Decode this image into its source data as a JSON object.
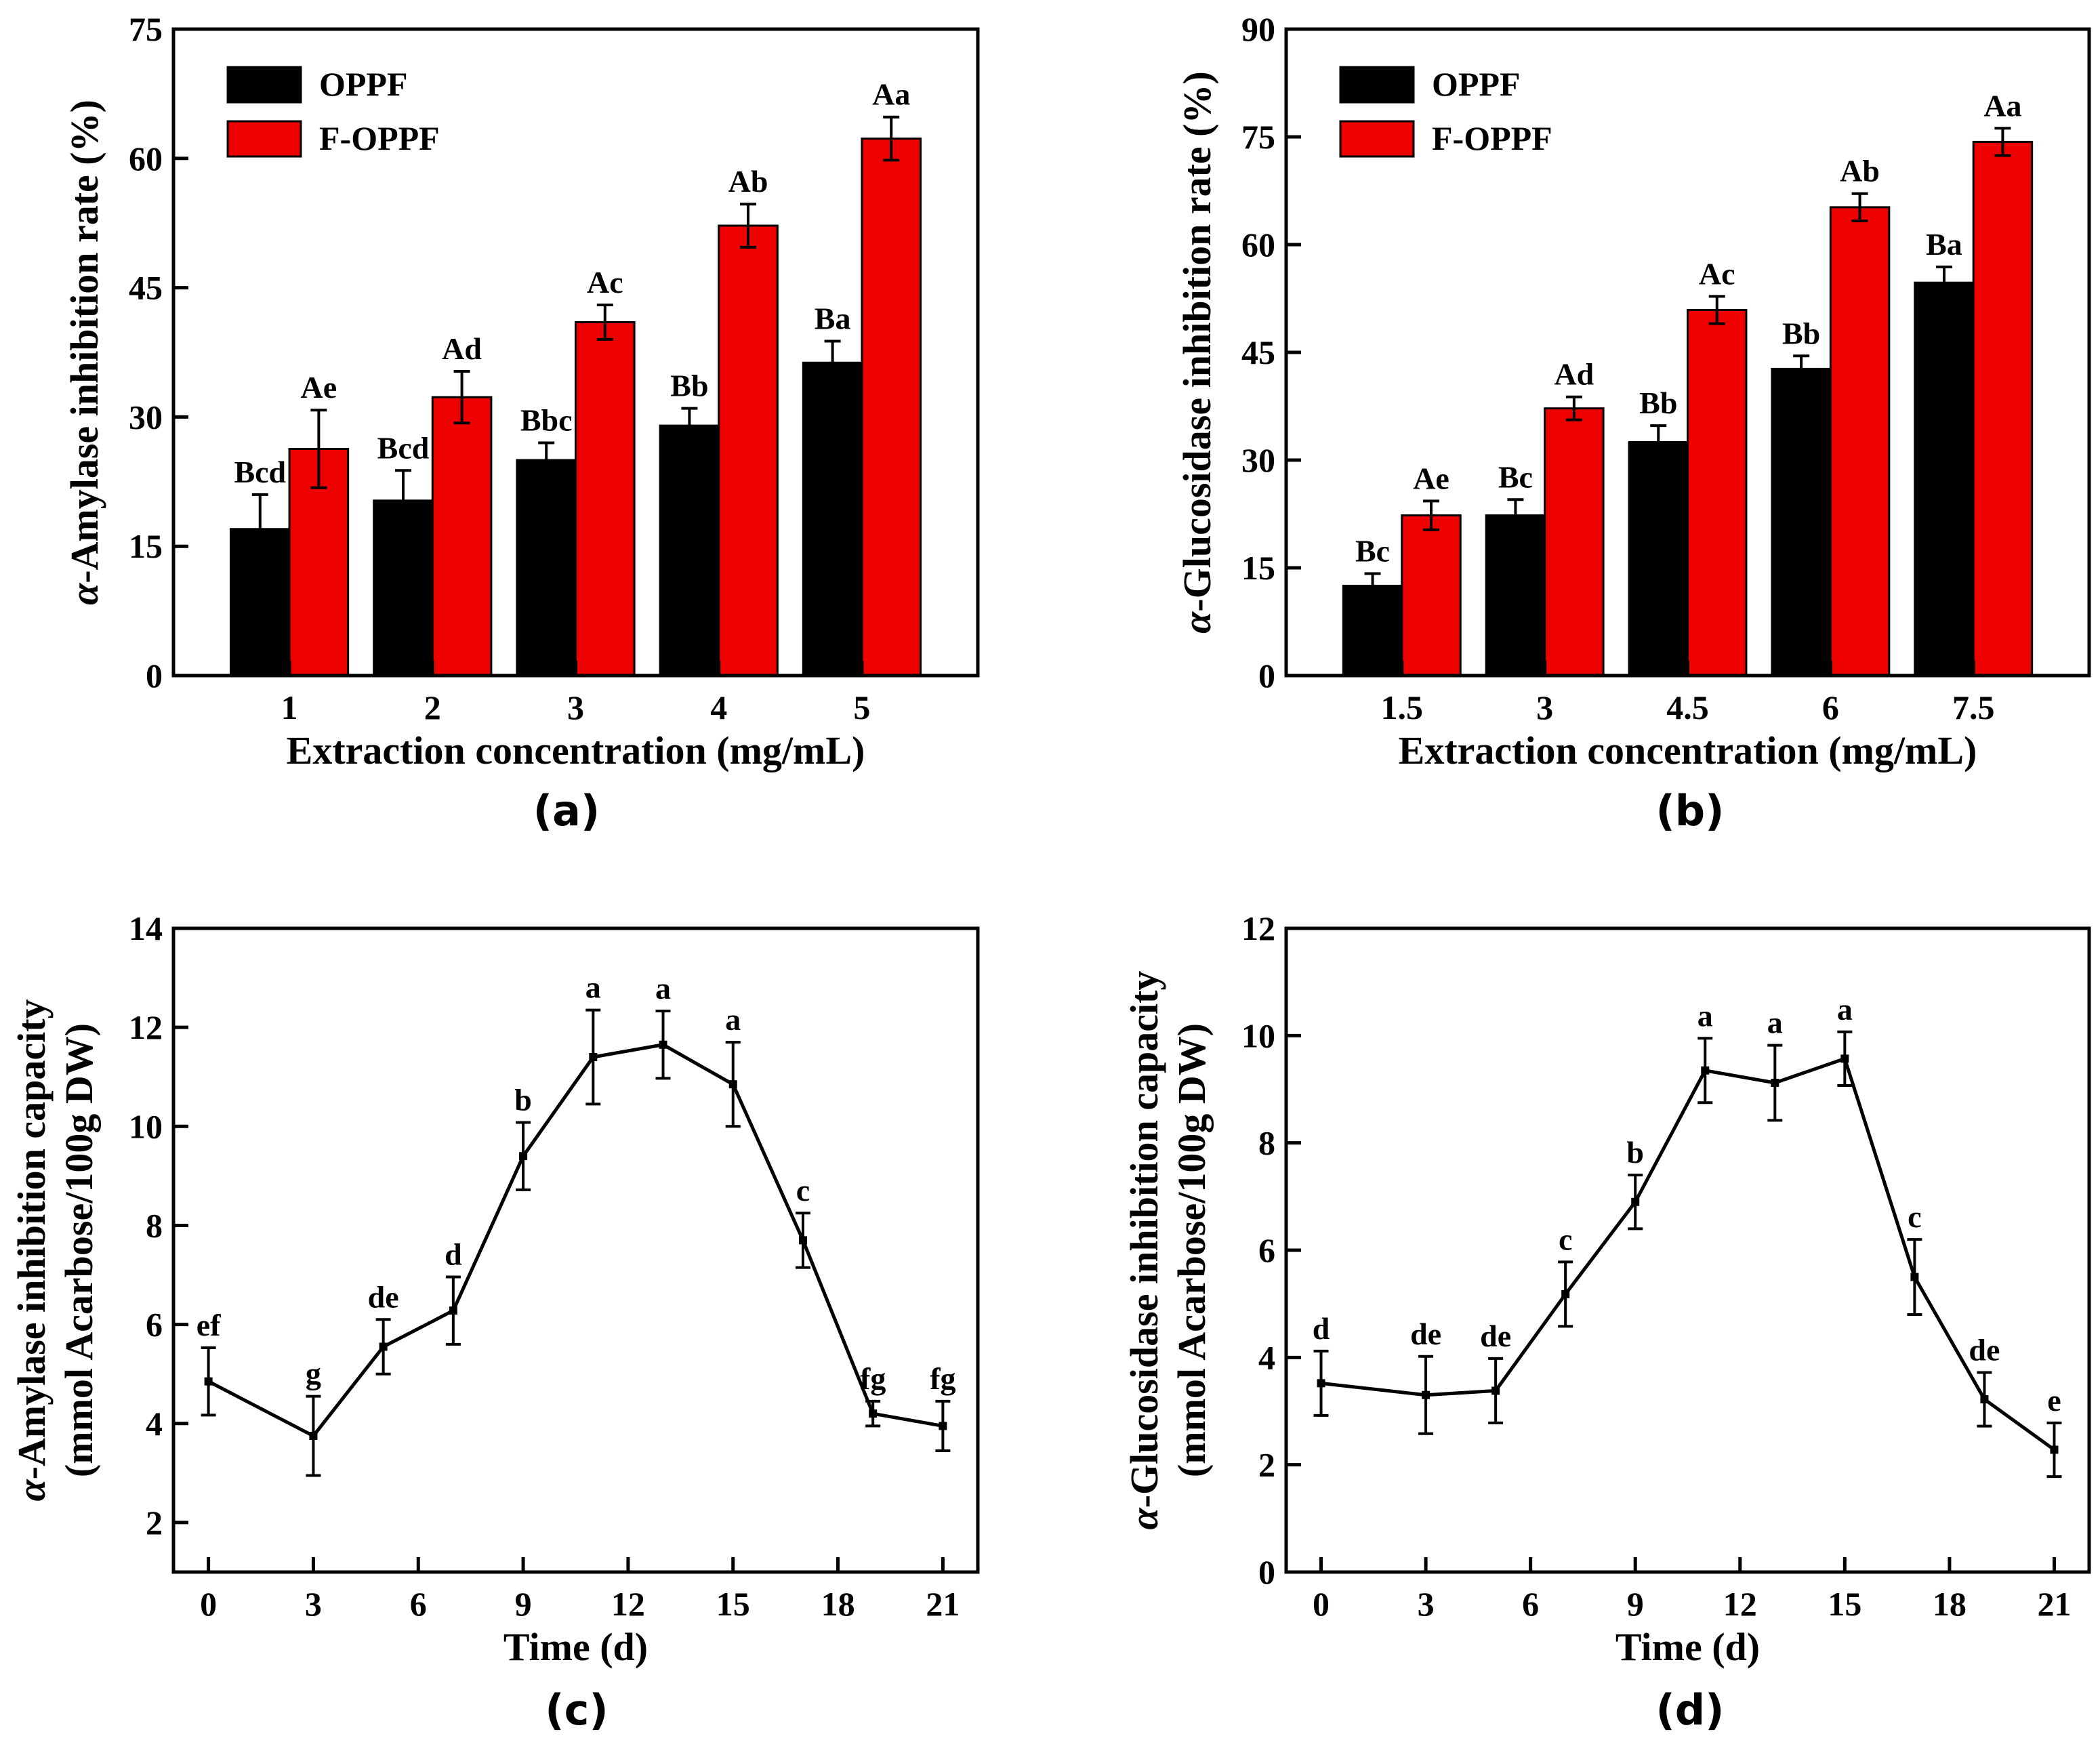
{
  "colors": {
    "oppf": "#000000",
    "foppf": "#ee0000",
    "line": "#000000"
  },
  "chart_data": [
    {
      "type": "bar",
      "panel": "(a)",
      "title": "",
      "xlabel": "Extraction concentration (mg/mL)",
      "ylabel_italic": "α",
      "ylabel_rest": "-Amylase inhibition rate (%)",
      "ylim": [
        0,
        75
      ],
      "yticks": [
        0,
        15,
        30,
        45,
        60,
        75
      ],
      "categories": [
        "1",
        "2",
        "3",
        "4",
        "5"
      ],
      "legend": {
        "position": "top-left",
        "entries": [
          "OPPF",
          "F-OPPF"
        ]
      },
      "series": [
        {
          "name": "OPPF",
          "values": [
            17,
            20.3,
            25,
            29,
            36.3
          ],
          "errors": [
            4,
            3.5,
            2,
            2,
            2.5
          ],
          "labels": [
            "Bcd",
            "Bcd",
            "Bbc",
            "Bb",
            "Ba"
          ]
        },
        {
          "name": "F-OPPF",
          "values": [
            26.3,
            32.3,
            41,
            52.2,
            62.3
          ],
          "errors": [
            4.5,
            3,
            2,
            2.5,
            2.5
          ],
          "labels": [
            "Ae",
            "Ad",
            "Ac",
            "Ab",
            "Aa"
          ]
        }
      ]
    },
    {
      "type": "bar",
      "panel": "(b)",
      "title": "",
      "xlabel": "Extraction concentration (mg/mL)",
      "ylabel_italic": "α",
      "ylabel_rest": "-Glucosidase inhibition rate (%)",
      "ylim": [
        0,
        90
      ],
      "yticks": [
        0,
        15,
        30,
        45,
        60,
        75,
        90
      ],
      "categories": [
        "1.5",
        "3",
        "4.5",
        "6",
        "7.5"
      ],
      "legend": {
        "position": "top-left",
        "entries": [
          "OPPF",
          "F-OPPF"
        ]
      },
      "series": [
        {
          "name": "OPPF",
          "values": [
            12.5,
            22.3,
            32.5,
            42.7,
            54.7
          ],
          "errors": [
            1.7,
            2.2,
            2.3,
            1.8,
            2.2
          ],
          "labels": [
            "Bc",
            "Bc",
            "Bb",
            "Bb",
            "Ba"
          ]
        },
        {
          "name": "F-OPPF",
          "values": [
            22.3,
            37.2,
            50.9,
            65.2,
            74.3
          ],
          "errors": [
            2,
            1.6,
            1.9,
            1.9,
            1.9
          ],
          "labels": [
            "Ae",
            "Ad",
            "Ac",
            "Ab",
            "Aa"
          ]
        }
      ]
    },
    {
      "type": "line",
      "panel": "(c)",
      "title": "",
      "xlabel": "Time (d)",
      "ylabel_italic": "α",
      "ylabel_rest": "-Amylase inhibition capacity",
      "ylabel_line2": "(mmol Acarbose/100g DW)",
      "xlim": [
        -1,
        22
      ],
      "ylim": [
        1,
        14
      ],
      "xticks": [
        0,
        3,
        6,
        9,
        12,
        15,
        18,
        21
      ],
      "yticks": [
        2,
        4,
        6,
        8,
        10,
        12,
        14
      ],
      "x": [
        0,
        3,
        5,
        7,
        9,
        11,
        13,
        15,
        17,
        19,
        21
      ],
      "y": [
        4.85,
        3.75,
        5.55,
        6.28,
        9.4,
        11.4,
        11.65,
        10.85,
        7.7,
        4.2,
        3.95
      ],
      "errors": [
        0.68,
        0.8,
        0.55,
        0.68,
        0.68,
        0.95,
        0.68,
        0.85,
        0.55,
        0.25,
        0.5
      ],
      "labels": [
        "ef",
        "g",
        "de",
        "d",
        "b",
        "a",
        "a",
        "a",
        "c",
        "fg",
        "fg"
      ]
    },
    {
      "type": "line",
      "panel": "(d)",
      "title": "",
      "xlabel": "Time (d)",
      "ylabel_italic": "α",
      "ylabel_rest": "-Glucosidase inhibition capacity",
      "ylabel_line2": "(mmol Acarbose/100g DW)",
      "xlim": [
        -1,
        22
      ],
      "ylim": [
        0,
        12
      ],
      "xticks": [
        0,
        3,
        6,
        9,
        12,
        15,
        18,
        21
      ],
      "yticks": [
        0,
        2,
        4,
        6,
        8,
        10,
        12
      ],
      "x": [
        0,
        3,
        5,
        7,
        9,
        11,
        13,
        15,
        17,
        19,
        21
      ],
      "y": [
        3.52,
        3.3,
        3.38,
        5.18,
        6.9,
        9.35,
        9.12,
        9.57,
        5.5,
        3.22,
        2.28
      ],
      "errors": [
        0.6,
        0.72,
        0.6,
        0.6,
        0.5,
        0.6,
        0.7,
        0.5,
        0.7,
        0.5,
        0.5
      ],
      "labels": [
        "d",
        "de",
        "de",
        "c",
        "b",
        "a",
        "a",
        "a",
        "c",
        "de",
        "e"
      ]
    }
  ]
}
